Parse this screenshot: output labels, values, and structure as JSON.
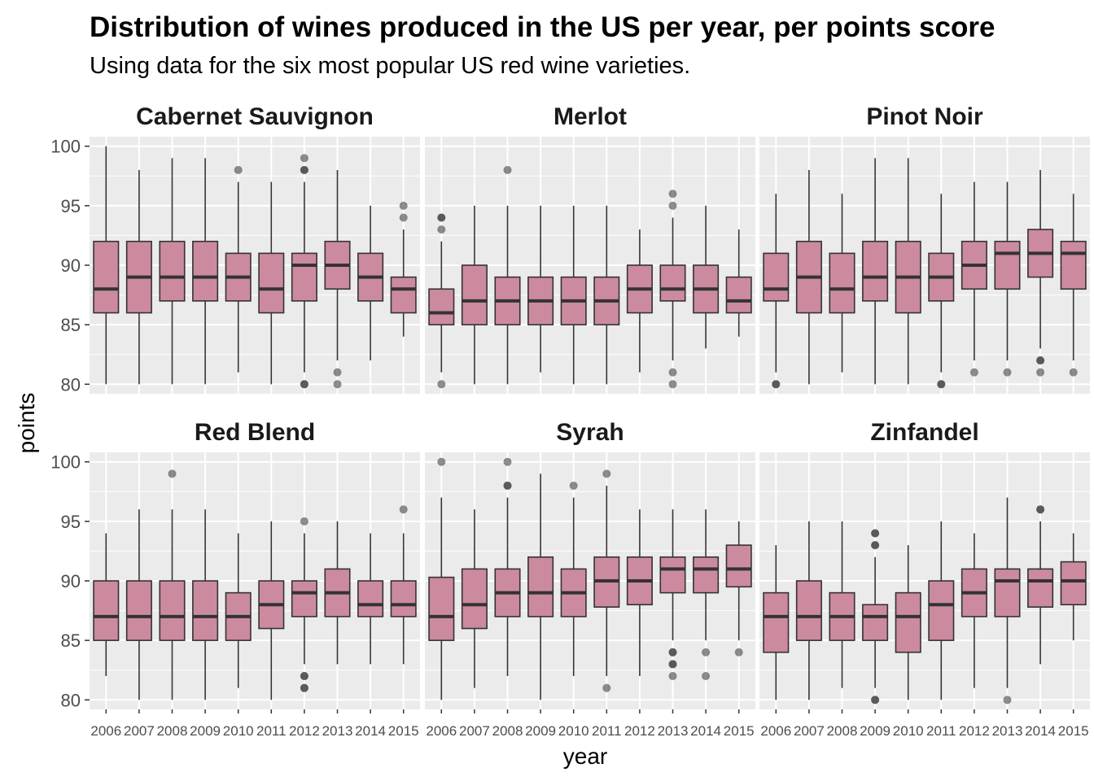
{
  "chart": {
    "title": "Distribution of wines produced in the US per year, per points score",
    "subtitle": "Using data for the six most popular US red wine varieties.",
    "xlabel": "year",
    "ylabel": "points"
  },
  "chart_data": {
    "type": "boxplot",
    "facet_layout": "3 columns x 2 rows",
    "categories": [
      "2006",
      "2007",
      "2008",
      "2009",
      "2010",
      "2011",
      "2012",
      "2013",
      "2014",
      "2015"
    ],
    "ylim": [
      79.2,
      100.8
    ],
    "yticks": [
      80,
      85,
      90,
      95,
      100
    ],
    "grid": true,
    "colors": {
      "box_fill": "#cc8a9f",
      "box_stroke": "#333333",
      "panel_bg": "#ebebeb",
      "grid": "#ffffff",
      "outlier": "#333333"
    },
    "panels": [
      {
        "name": "Cabernet Sauvignon",
        "boxes": [
          {
            "x": "2006",
            "q1": 86,
            "median": 88,
            "q3": 92,
            "lo": 80,
            "hi": 100,
            "outliers": []
          },
          {
            "x": "2007",
            "q1": 86,
            "median": 89,
            "q3": 92,
            "lo": 80,
            "hi": 98,
            "outliers": []
          },
          {
            "x": "2008",
            "q1": 87,
            "median": 89,
            "q3": 92,
            "lo": 80,
            "hi": 99,
            "outliers": []
          },
          {
            "x": "2009",
            "q1": 87,
            "median": 89,
            "q3": 92,
            "lo": 80,
            "hi": 99,
            "outliers": []
          },
          {
            "x": "2010",
            "q1": 87,
            "median": 89,
            "q3": 91,
            "lo": 81,
            "hi": 97,
            "outliers": [
              98
            ]
          },
          {
            "x": "2011",
            "q1": 86,
            "median": 88,
            "q3": 91,
            "lo": 80,
            "hi": 97,
            "outliers": []
          },
          {
            "x": "2012",
            "q1": 87,
            "median": 90,
            "q3": 91,
            "lo": 81,
            "hi": 97,
            "outliers": [
              99,
              98,
              98,
              80,
              80
            ]
          },
          {
            "x": "2013",
            "q1": 88,
            "median": 90,
            "q3": 92,
            "lo": 82,
            "hi": 98,
            "outliers": [
              81,
              80
            ]
          },
          {
            "x": "2014",
            "q1": 87,
            "median": 89,
            "q3": 91,
            "lo": 82,
            "hi": 95,
            "outliers": []
          },
          {
            "x": "2015",
            "q1": 86,
            "median": 88,
            "q3": 89,
            "lo": 84,
            "hi": 93,
            "outliers": [
              95,
              94
            ]
          }
        ]
      },
      {
        "name": "Merlot",
        "boxes": [
          {
            "x": "2006",
            "q1": 85,
            "median": 86,
            "q3": 88,
            "lo": 81,
            "hi": 92,
            "outliers": [
              94,
              94,
              93,
              80
            ]
          },
          {
            "x": "2007",
            "q1": 85,
            "median": 87,
            "q3": 90,
            "lo": 80,
            "hi": 95,
            "outliers": []
          },
          {
            "x": "2008",
            "q1": 85,
            "median": 87,
            "q3": 89,
            "lo": 80,
            "hi": 95,
            "outliers": [
              98
            ]
          },
          {
            "x": "2009",
            "q1": 85,
            "median": 87,
            "q3": 89,
            "lo": 81,
            "hi": 95,
            "outliers": []
          },
          {
            "x": "2010",
            "q1": 85,
            "median": 87,
            "q3": 89,
            "lo": 80,
            "hi": 95,
            "outliers": []
          },
          {
            "x": "2011",
            "q1": 85,
            "median": 87,
            "q3": 89,
            "lo": 80,
            "hi": 95,
            "outliers": []
          },
          {
            "x": "2012",
            "q1": 86,
            "median": 88,
            "q3": 90,
            "lo": 81,
            "hi": 93,
            "outliers": []
          },
          {
            "x": "2013",
            "q1": 87,
            "median": 88,
            "q3": 90,
            "lo": 82,
            "hi": 94,
            "outliers": [
              96,
              95,
              81,
              80
            ]
          },
          {
            "x": "2014",
            "q1": 86,
            "median": 88,
            "q3": 90,
            "lo": 83,
            "hi": 95,
            "outliers": []
          },
          {
            "x": "2015",
            "q1": 86,
            "median": 87,
            "q3": 89,
            "lo": 84,
            "hi": 93,
            "outliers": []
          }
        ]
      },
      {
        "name": "Pinot Noir",
        "boxes": [
          {
            "x": "2006",
            "q1": 87,
            "median": 88,
            "q3": 91,
            "lo": 81,
            "hi": 96,
            "outliers": [
              80,
              80
            ]
          },
          {
            "x": "2007",
            "q1": 86,
            "median": 89,
            "q3": 92,
            "lo": 80,
            "hi": 98,
            "outliers": []
          },
          {
            "x": "2008",
            "q1": 86,
            "median": 88,
            "q3": 91,
            "lo": 81,
            "hi": 96,
            "outliers": []
          },
          {
            "x": "2009",
            "q1": 87,
            "median": 89,
            "q3": 92,
            "lo": 80,
            "hi": 99,
            "outliers": []
          },
          {
            "x": "2010",
            "q1": 86,
            "median": 89,
            "q3": 92,
            "lo": 80,
            "hi": 99,
            "outliers": []
          },
          {
            "x": "2011",
            "q1": 87,
            "median": 89,
            "q3": 91,
            "lo": 81,
            "hi": 96,
            "outliers": [
              80,
              80
            ]
          },
          {
            "x": "2012",
            "q1": 88,
            "median": 90,
            "q3": 92,
            "lo": 82,
            "hi": 97,
            "outliers": [
              81
            ]
          },
          {
            "x": "2013",
            "q1": 88,
            "median": 91,
            "q3": 92,
            "lo": 82,
            "hi": 97,
            "outliers": [
              81
            ]
          },
          {
            "x": "2014",
            "q1": 89,
            "median": 91,
            "q3": 93,
            "lo": 83,
            "hi": 98,
            "outliers": [
              82,
              82,
              81
            ]
          },
          {
            "x": "2015",
            "q1": 88,
            "median": 91,
            "q3": 92,
            "lo": 82,
            "hi": 96,
            "outliers": [
              81
            ]
          }
        ]
      },
      {
        "name": "Red Blend",
        "boxes": [
          {
            "x": "2006",
            "q1": 85,
            "median": 87,
            "q3": 90,
            "lo": 82,
            "hi": 94,
            "outliers": []
          },
          {
            "x": "2007",
            "q1": 85,
            "median": 87,
            "q3": 90,
            "lo": 80,
            "hi": 96,
            "outliers": []
          },
          {
            "x": "2008",
            "q1": 85,
            "median": 87,
            "q3": 90,
            "lo": 80,
            "hi": 96,
            "outliers": [
              99
            ]
          },
          {
            "x": "2009",
            "q1": 85,
            "median": 87,
            "q3": 90,
            "lo": 80,
            "hi": 96,
            "outliers": []
          },
          {
            "x": "2010",
            "q1": 85,
            "median": 87,
            "q3": 89,
            "lo": 81,
            "hi": 94,
            "outliers": []
          },
          {
            "x": "2011",
            "q1": 86,
            "median": 88,
            "q3": 90,
            "lo": 80,
            "hi": 95,
            "outliers": []
          },
          {
            "x": "2012",
            "q1": 87,
            "median": 89,
            "q3": 90,
            "lo": 83,
            "hi": 94,
            "outliers": [
              95,
              82,
              82,
              81,
              81
            ]
          },
          {
            "x": "2013",
            "q1": 87,
            "median": 89,
            "q3": 91,
            "lo": 83,
            "hi": 95,
            "outliers": []
          },
          {
            "x": "2014",
            "q1": 87,
            "median": 88,
            "q3": 90,
            "lo": 83,
            "hi": 94,
            "outliers": []
          },
          {
            "x": "2015",
            "q1": 87,
            "median": 88,
            "q3": 90,
            "lo": 83,
            "hi": 94,
            "outliers": [
              96
            ]
          }
        ]
      },
      {
        "name": "Syrah",
        "boxes": [
          {
            "x": "2006",
            "q1": 85,
            "median": 87,
            "q3": 90.3,
            "lo": 80,
            "hi": 97,
            "outliers": [
              100
            ]
          },
          {
            "x": "2007",
            "q1": 86,
            "median": 88,
            "q3": 91,
            "lo": 81,
            "hi": 96,
            "outliers": []
          },
          {
            "x": "2008",
            "q1": 87,
            "median": 89,
            "q3": 91,
            "lo": 82,
            "hi": 97,
            "outliers": [
              100,
              98,
              98
            ]
          },
          {
            "x": "2009",
            "q1": 87,
            "median": 89,
            "q3": 92,
            "lo": 80,
            "hi": 99,
            "outliers": []
          },
          {
            "x": "2010",
            "q1": 87,
            "median": 89,
            "q3": 91,
            "lo": 82,
            "hi": 97,
            "outliers": [
              98
            ]
          },
          {
            "x": "2011",
            "q1": 87.8,
            "median": 90,
            "q3": 92,
            "lo": 82,
            "hi": 98,
            "outliers": [
              99,
              81
            ]
          },
          {
            "x": "2012",
            "q1": 88,
            "median": 90,
            "q3": 92,
            "lo": 82,
            "hi": 96,
            "outliers": []
          },
          {
            "x": "2013",
            "q1": 89,
            "median": 91,
            "q3": 92,
            "lo": 85,
            "hi": 96,
            "outliers": [
              84,
              84,
              83,
              83,
              82
            ]
          },
          {
            "x": "2014",
            "q1": 89,
            "median": 91,
            "q3": 92,
            "lo": 85,
            "hi": 96,
            "outliers": [
              84,
              82
            ]
          },
          {
            "x": "2015",
            "q1": 89.5,
            "median": 91,
            "q3": 93,
            "lo": 85,
            "hi": 95,
            "outliers": [
              84
            ]
          }
        ]
      },
      {
        "name": "Zinfandel",
        "boxes": [
          {
            "x": "2006",
            "q1": 84,
            "median": 87,
            "q3": 89,
            "lo": 80,
            "hi": 93,
            "outliers": []
          },
          {
            "x": "2007",
            "q1": 85,
            "median": 87,
            "q3": 90,
            "lo": 80,
            "hi": 95,
            "outliers": []
          },
          {
            "x": "2008",
            "q1": 85,
            "median": 87,
            "q3": 89,
            "lo": 81,
            "hi": 95,
            "outliers": []
          },
          {
            "x": "2009",
            "q1": 85,
            "median": 87,
            "q3": 88,
            "lo": 81,
            "hi": 92,
            "outliers": [
              94,
              94,
              93,
              93,
              80,
              80
            ]
          },
          {
            "x": "2010",
            "q1": 84,
            "median": 87,
            "q3": 89,
            "lo": 80,
            "hi": 93,
            "outliers": []
          },
          {
            "x": "2011",
            "q1": 85,
            "median": 88,
            "q3": 90,
            "lo": 80,
            "hi": 95,
            "outliers": []
          },
          {
            "x": "2012",
            "q1": 87,
            "median": 89,
            "q3": 91,
            "lo": 81,
            "hi": 94,
            "outliers": []
          },
          {
            "x": "2013",
            "q1": 87,
            "median": 90,
            "q3": 91,
            "lo": 81,
            "hi": 97,
            "outliers": [
              80
            ]
          },
          {
            "x": "2014",
            "q1": 87.8,
            "median": 90,
            "q3": 91,
            "lo": 83,
            "hi": 95,
            "outliers": [
              96,
              96
            ]
          },
          {
            "x": "2015",
            "q1": 88,
            "median": 90,
            "q3": 91.6,
            "lo": 85,
            "hi": 94,
            "outliers": []
          }
        ]
      }
    ]
  }
}
